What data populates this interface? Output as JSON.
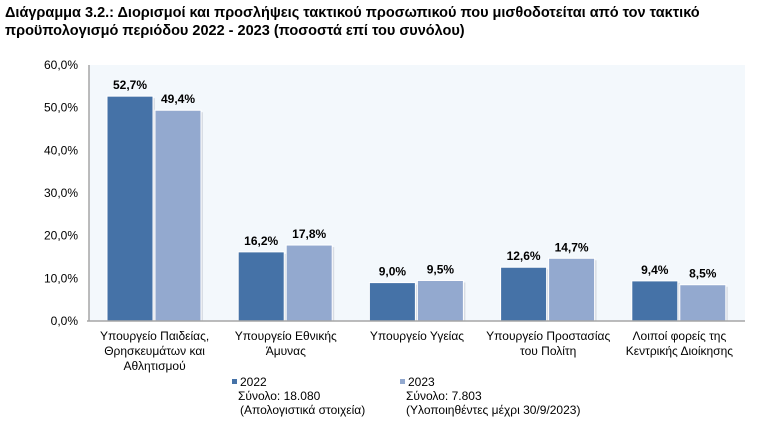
{
  "chart_data": {
    "type": "bar",
    "title": "Διάγραμμα 3.2.: Διορισμοί και προσλήψεις τακτικού προσωπικού που μισθοδοτείται από τον τακτικό προϋπολογισμό περιόδου 2022 - 2023 (ποσοστά επί του συνόλου)",
    "categories": [
      [
        "Υπουργείο Παιδείας,",
        "Θρησκευμάτων και",
        "Αθλητισμού"
      ],
      [
        "Υπουργείο Εθνικής",
        "Άμυνας"
      ],
      [
        "Υπουργείο Υγείας"
      ],
      [
        "Υπουργείο Προστασίας",
        "του Πολίτη"
      ],
      [
        "Λοιποί φορείς της",
        "Κεντρικής Διοίκησης"
      ]
    ],
    "series": [
      {
        "name": "2022",
        "legend_lines": [
          "Σύνολο: 18.080",
          "(Απολογιστικά στοιχεία)"
        ],
        "color": "#4572A7",
        "values": [
          52.7,
          16.2,
          9.0,
          12.6,
          9.4
        ],
        "labels": [
          "52,7%",
          "16,2%",
          "9,0%",
          "12,6%",
          "9,4%"
        ]
      },
      {
        "name": "2023",
        "legend_lines": [
          "Σύνολο: 7.803",
          "(Υλοποιηθέντες μέχρι 30/9/2023)"
        ],
        "color": "#93A9CF",
        "values": [
          49.4,
          17.8,
          9.5,
          14.7,
          8.5
        ],
        "labels": [
          "49,4%",
          "17,8%",
          "9,5%",
          "14,7%",
          "8,5%"
        ]
      }
    ],
    "ylim": [
      0,
      60
    ],
    "yticks": [
      "0,0%",
      "10,0%",
      "20,0%",
      "30,0%",
      "40,0%",
      "50,0%",
      "60,0%"
    ],
    "grid": false,
    "legend_position": "bottom",
    "plot_background": "#F3F8FC"
  }
}
